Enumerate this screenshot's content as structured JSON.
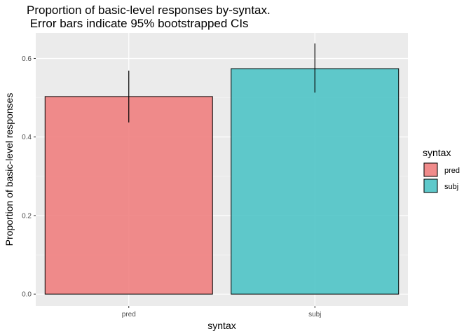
{
  "chart_data": {
    "type": "bar",
    "title_lines": [
      "Proportion of basic-level responses by-syntax.",
      " Error bars indicate 95% bootstrapped CIs"
    ],
    "xlabel": "syntax",
    "ylabel": "Proportion of basic-level responses",
    "categories": [
      "pred",
      "subj"
    ],
    "values": [
      0.503,
      0.574
    ],
    "ci_low": [
      0.437,
      0.513
    ],
    "ci_high": [
      0.569,
      0.638
    ],
    "colors": [
      "#f08080",
      "#4fc4c6"
    ],
    "ylim": [
      -0.03,
      0.665
    ],
    "yticks": [
      0.0,
      0.2,
      0.4,
      0.6
    ],
    "ytick_labels": [
      "0.0",
      "0.2",
      "0.4",
      "0.6"
    ],
    "grid": true,
    "legend": {
      "title": "syntax",
      "position": "right",
      "entries": [
        "pred",
        "subj"
      ]
    }
  }
}
